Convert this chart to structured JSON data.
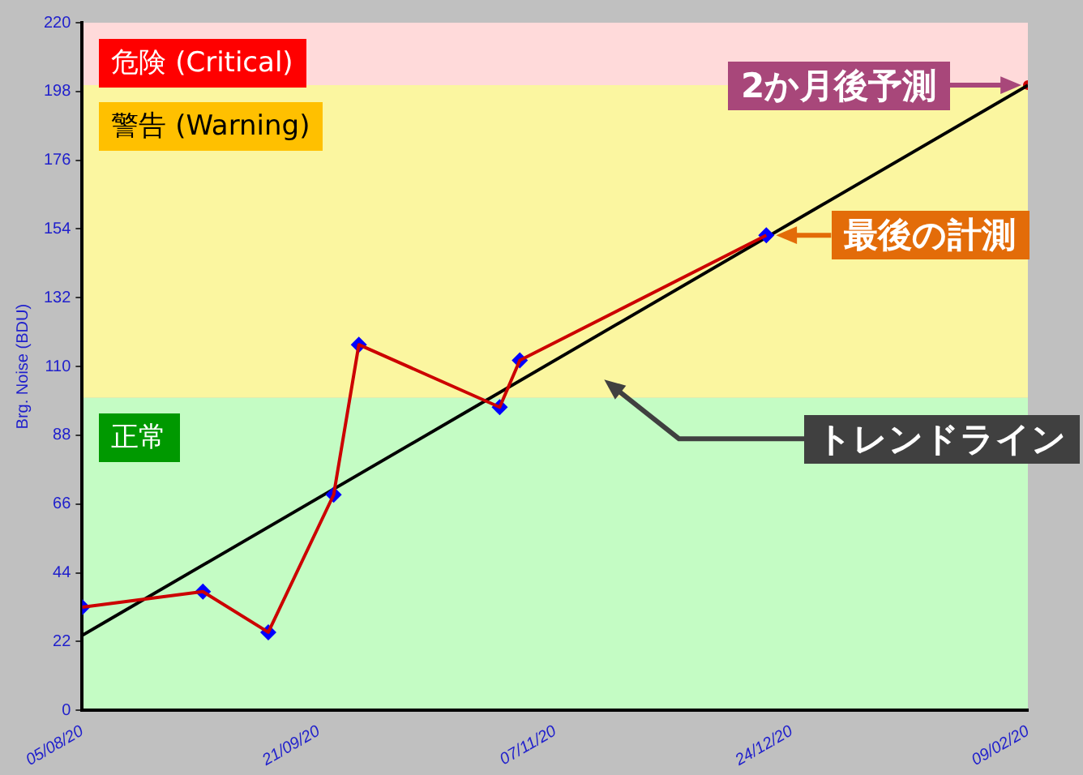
{
  "chart_data": {
    "type": "line",
    "ylabel": "Brg. Noise (BDU)",
    "xlim": [
      "2020-08-05",
      "2021-02-09"
    ],
    "xticks": [
      {
        "value": "2020-08-05",
        "label": "05/08/20"
      },
      {
        "value": "2020-09-21",
        "label": "21/09/20"
      },
      {
        "value": "2020-11-07",
        "label": "07/11/20"
      },
      {
        "value": "2020-12-24",
        "label": "24/12/20"
      },
      {
        "value": "2021-02-09",
        "label": "09/02/20"
      }
    ],
    "ylim": [
      0,
      220
    ],
    "yticks": [
      0,
      22,
      44,
      66,
      88,
      110,
      132,
      154,
      176,
      198,
      220
    ],
    "grid": false,
    "legend": false,
    "series": [
      {
        "type": "line",
        "color": "#cc0000",
        "marker": "none",
        "x": [
          "2020-08-05",
          "2020-08-29",
          "2020-09-11",
          "2020-09-24",
          "2020-09-29",
          "2020-10-27",
          "2020-10-31",
          "2020-12-19"
        ],
        "values": [
          33,
          38,
          25,
          69,
          117,
          97,
          112,
          152
        ]
      },
      {
        "type": "scatter",
        "color": "#0000ff",
        "marker": "diamond",
        "x": [
          "2020-08-05",
          "2020-08-29",
          "2020-09-11",
          "2020-09-24",
          "2020-09-29",
          "2020-10-27",
          "2020-10-31",
          "2020-12-19"
        ],
        "values": [
          33,
          38,
          25,
          69,
          117,
          97,
          112,
          152
        ]
      },
      {
        "type": "line",
        "color": "#000000",
        "marker": "none",
        "x": [
          "2020-08-05",
          "2021-02-09"
        ],
        "values": [
          24,
          200
        ]
      },
      {
        "type": "scatter",
        "color": "#cc0000",
        "marker": "circle",
        "x": [
          "2021-02-09"
        ],
        "values": [
          200
        ]
      }
    ],
    "bands": [
      {
        "axis": "y",
        "from": 200,
        "to": 220,
        "label": "危険 (Critical)",
        "color": "#ffdada"
      },
      {
        "axis": "y",
        "from": 100,
        "to": 200,
        "label": "警告 (Warning)",
        "color": "#fbf6a0"
      },
      {
        "axis": "y",
        "from": 0,
        "to": 100,
        "label": "正常",
        "color": "#c4fcc4"
      }
    ],
    "annotations": [
      {
        "text": "2か月後予測",
        "x": "2021-02-09",
        "y": 200
      },
      {
        "text": "最後の計測",
        "x": "2020-12-19",
        "y": 152
      },
      "トレンドライン"
    ]
  }
}
